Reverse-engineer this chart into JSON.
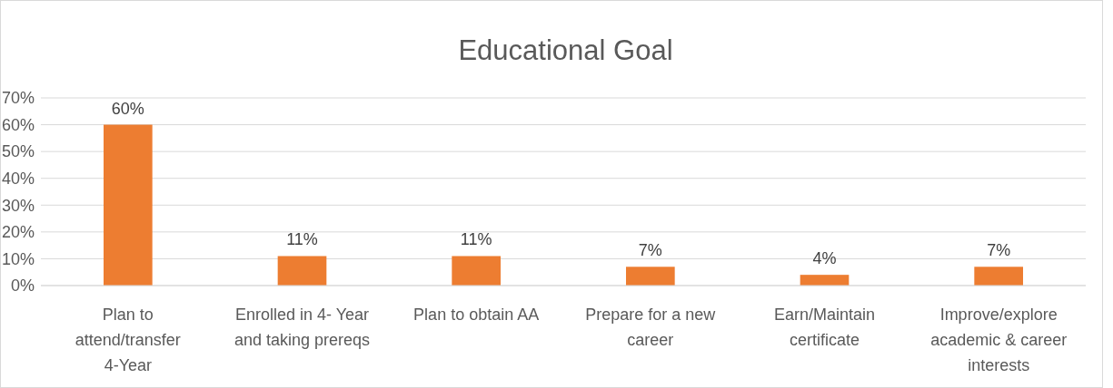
{
  "chart_data": {
    "type": "bar",
    "title": "Educational Goal",
    "categories": [
      "Plan to attend/transfer 4-Year",
      "Enrolled in 4- Year and taking prereqs",
      "Plan to obtain AA",
      "Prepare for a new career",
      "Earn/Maintain certificate",
      "Improve/explore academic & career interests"
    ],
    "values": [
      60,
      11,
      11,
      7,
      4,
      7
    ],
    "value_labels": [
      "60%",
      "11%",
      "11%",
      "7%",
      "4%",
      "7%"
    ],
    "color": "#ed7d31",
    "ylim": [
      0,
      70
    ],
    "yticks": [
      {
        "value": 0,
        "label": "0%"
      },
      {
        "value": 10,
        "label": "10%"
      },
      {
        "value": 20,
        "label": "20%"
      },
      {
        "value": 30,
        "label": "30%"
      },
      {
        "value": 40,
        "label": "40%"
      },
      {
        "value": 50,
        "label": "50%"
      },
      {
        "value": 60,
        "label": "60%"
      },
      {
        "value": 70,
        "label": "70%"
      }
    ],
    "grid": "y"
  }
}
